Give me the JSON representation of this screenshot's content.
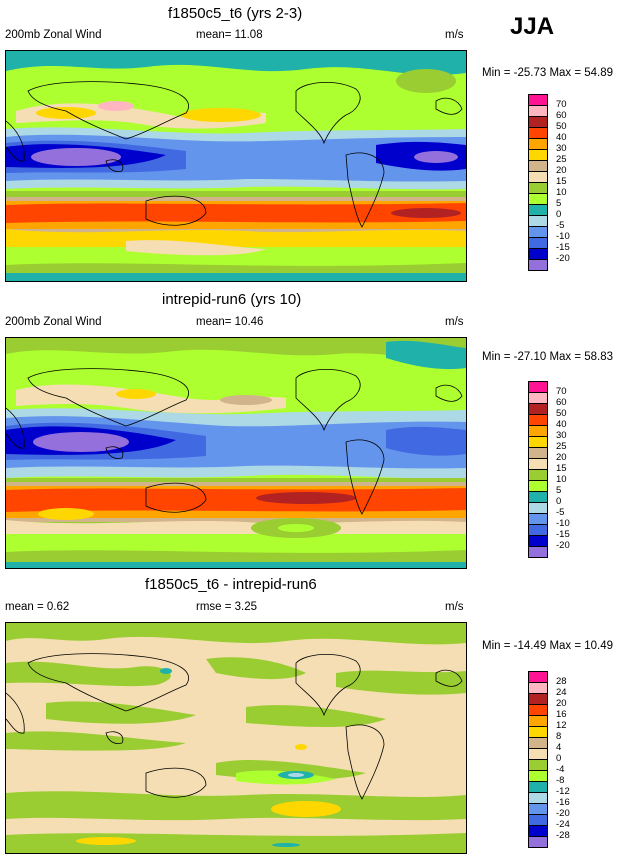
{
  "season": "JJA",
  "panels": [
    {
      "title": "f1850c5_t6 (yrs 2-3)",
      "left_label": "200mb Zonal Wind",
      "mean_text": "mean=  11.08",
      "units": "m/s",
      "minmax": "Min = -25.73 Max =  54.89",
      "colorbar_labels": [
        "70",
        "60",
        "50",
        "40",
        "30",
        "25",
        "20",
        "15",
        "10",
        "5",
        "0",
        "-5",
        "-10",
        "-15",
        "-20"
      ]
    },
    {
      "title": "intrepid-run6 (yrs 10)",
      "left_label": "200mb Zonal Wind",
      "mean_text": "mean=  10.46",
      "units": "m/s",
      "minmax": "Min = -27.10 Max =  58.83",
      "colorbar_labels": [
        "70",
        "60",
        "50",
        "40",
        "30",
        "25",
        "20",
        "15",
        "10",
        "5",
        "0",
        "-5",
        "-10",
        "-15",
        "-20"
      ]
    },
    {
      "title": "f1850c5_t6 - intrepid-run6",
      "left_label": "mean =   0.62",
      "mean_text": "rmse =   3.25",
      "units": "m/s",
      "minmax": "Min = -14.49 Max =  10.49",
      "colorbar_labels": [
        "28",
        "24",
        "20",
        "16",
        "12",
        "8",
        "4",
        "0",
        "-4",
        "-8",
        "-12",
        "-16",
        "-20",
        "-24",
        "-28"
      ]
    }
  ],
  "colors": {
    "wind_scale": [
      "#ff1493",
      "#ffb6c1",
      "#b22222",
      "#ff4500",
      "#ffa500",
      "#ffd700",
      "#d2b48c",
      "#f5deb3",
      "#9acd32",
      "#adff2f",
      "#20b2aa",
      "#add8e6",
      "#6495ed",
      "#4169e1",
      "#0000cd",
      "#9370db"
    ],
    "diff_scale": [
      "#ff1493",
      "#ffb6c1",
      "#b22222",
      "#ff4500",
      "#ffa500",
      "#ffd700",
      "#d2b48c",
      "#f5deb3",
      "#9acd32",
      "#adff2f",
      "#20b2aa",
      "#add8e6",
      "#6495ed",
      "#4169e1",
      "#0000cd",
      "#9370db"
    ]
  }
}
